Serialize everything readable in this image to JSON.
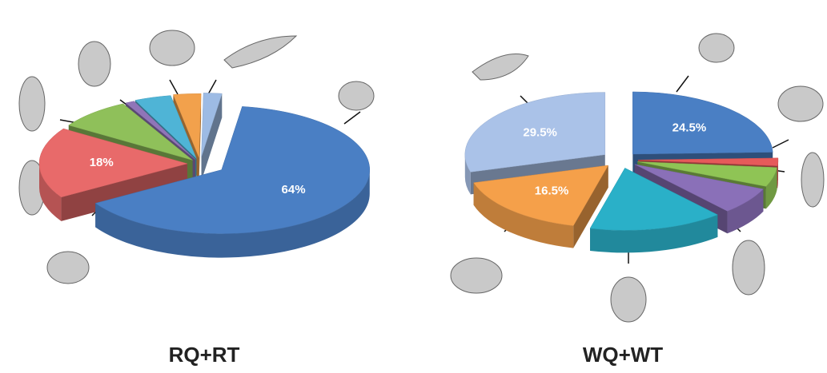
{
  "chart_data": [
    {
      "type": "pie",
      "title": "RQ+RT",
      "values": [
        64,
        18,
        8,
        1,
        4,
        3,
        2
      ],
      "value_labels": [
        "64%",
        "18%",
        null,
        null,
        null,
        null,
        null
      ],
      "colors": [
        "#4a7fc4",
        "#e86a6a",
        "#8fc05a",
        "#9075b8",
        "#4fb4d6",
        "#f2a14c",
        "#9dbbe4"
      ]
    },
    {
      "type": "pie",
      "title": "WQ+WT",
      "values": [
        24.5,
        2,
        5,
        7,
        15.5,
        16.5,
        29.5
      ],
      "value_labels": [
        "24.5%",
        null,
        null,
        null,
        null,
        "16.5%",
        "29.5%"
      ],
      "colors": [
        "#4a7fc4",
        "#e65a5a",
        "#8fc455",
        "#8a70b8",
        "#2ab0c8",
        "#f5a04a",
        "#aac2e8"
      ]
    }
  ]
}
